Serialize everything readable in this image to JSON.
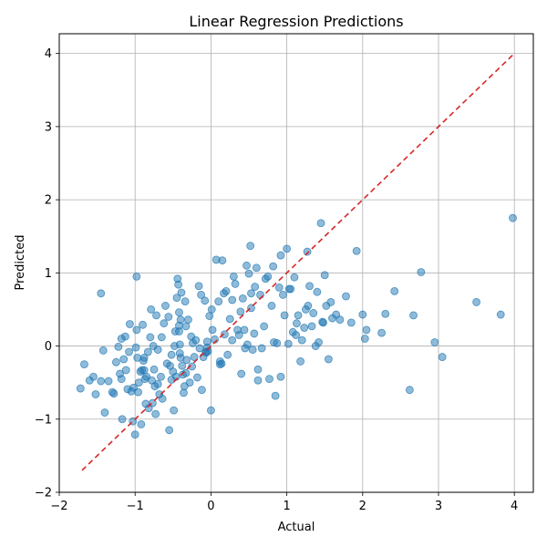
{
  "chart_data": {
    "type": "scatter",
    "title": "Linear Regression Predictions",
    "xlabel": "Actual",
    "ylabel": "Predicted",
    "xlim": [
      -2,
      4.25
    ],
    "ylim": [
      -2,
      4.27
    ],
    "xticks": [
      -2,
      -1,
      0,
      1,
      2,
      3,
      4
    ],
    "yticks": [
      -2,
      -1,
      0,
      1,
      2,
      3,
      4
    ],
    "grid": true,
    "colors": {
      "points": "#1f77b4",
      "reference_line": "#d62728"
    },
    "reference_line": {
      "x": [
        -1.7,
        4.0
      ],
      "y": [
        -1.7,
        4.0
      ],
      "style": "dashed"
    },
    "series": [
      {
        "x": [
          -1.72,
          -1.67,
          -1.6,
          -1.55,
          -1.52,
          -1.45,
          -1.42,
          -1.4,
          -1.35,
          -1.3,
          -1.28,
          -1.25,
          -1.22,
          -1.2,
          -1.18,
          -1.17,
          -1.15,
          -1.13,
          -1.12,
          -1.1,
          -1.08,
          -1.07,
          -1.05,
          -1.03,
          -1.02,
          -1.0,
          -0.99,
          -0.98,
          -0.97,
          -0.96,
          -0.95,
          -0.93,
          -0.92,
          -0.91,
          -0.9,
          -0.89,
          -0.88,
          -0.87,
          -0.86,
          -0.85,
          -0.83,
          -0.82,
          -0.8,
          -0.79,
          -0.78,
          -0.77,
          -0.76,
          -0.75,
          -0.74,
          -0.73,
          -0.72,
          -0.7,
          -0.68,
          -0.66,
          -0.65,
          -0.64,
          -0.62,
          -0.6,
          -0.58,
          -0.56,
          -0.55,
          -0.54,
          -0.52,
          -0.5,
          -0.49,
          -0.48,
          -0.47,
          -0.46,
          -0.45,
          -0.44,
          -0.43,
          -0.42,
          -0.42,
          -0.41,
          -0.41,
          -0.4,
          -0.4,
          -0.39,
          -0.38,
          -0.37,
          -0.36,
          -0.35,
          -0.34,
          -0.33,
          -0.32,
          -0.3,
          -0.28,
          -0.26,
          -0.25,
          -0.24,
          -0.22,
          -0.2,
          -0.18,
          -0.16,
          -0.15,
          -0.13,
          -0.12,
          -0.1,
          -0.08,
          -0.07,
          -0.06,
          -0.05,
          -0.04,
          -0.02,
          0.0,
          0.01,
          0.02,
          0.05,
          0.07,
          0.1,
          0.12,
          0.14,
          0.15,
          0.17,
          0.18,
          0.2,
          0.22,
          0.25,
          0.28,
          0.3,
          0.32,
          0.35,
          0.37,
          0.39,
          0.4,
          0.42,
          0.45,
          0.47,
          0.48,
          0.5,
          0.52,
          0.53,
          0.55,
          0.57,
          0.58,
          0.6,
          0.62,
          0.65,
          0.67,
          0.7,
          0.72,
          0.75,
          0.77,
          0.8,
          0.82,
          0.85,
          0.87,
          0.9,
          0.92,
          0.95,
          0.97,
          1.0,
          1.02,
          1.05,
          1.08,
          1.1,
          1.12,
          1.15,
          1.18,
          1.2,
          1.23,
          1.25,
          1.28,
          1.3,
          1.33,
          1.35,
          1.38,
          1.4,
          1.42,
          1.45,
          1.48,
          1.5,
          1.52,
          1.55,
          1.58,
          1.6,
          1.65,
          1.7,
          1.78,
          1.85,
          1.92,
          2.0,
          2.03,
          2.05,
          2.25,
          2.3,
          2.42,
          2.62,
          2.67,
          2.77,
          2.95,
          3.05,
          3.5,
          3.82,
          3.98,
          -1.45,
          -0.98,
          -0.42,
          0.12,
          0.53,
          1.03,
          1.47,
          -0.52,
          -0.05,
          0.83,
          -1.18,
          -0.88,
          0.28,
          0.62,
          -0.33,
          0.92,
          1.13,
          -0.7,
          0.44,
          1.27
        ],
        "y": [
          -0.58,
          -0.25,
          -0.47,
          -0.42,
          -0.66,
          -0.48,
          -0.06,
          -0.91,
          -0.48,
          -0.63,
          -0.65,
          -0.22,
          -0.01,
          -0.38,
          -0.45,
          -1.0,
          -0.18,
          0.13,
          -0.33,
          -0.59,
          -0.08,
          0.3,
          -0.62,
          -1.03,
          -0.57,
          -1.21,
          -0.02,
          0.95,
          -0.16,
          -0.63,
          -0.5,
          -0.35,
          -1.07,
          -0.33,
          0.29,
          -0.2,
          -0.16,
          -0.45,
          -0.79,
          -0.42,
          -0.08,
          -0.85,
          0.12,
          0.5,
          -0.47,
          -0.78,
          0.0,
          -0.32,
          -0.55,
          -0.93,
          0.42,
          -0.05,
          -0.66,
          -0.42,
          0.12,
          -0.72,
          0.31,
          0.55,
          -0.24,
          0.4,
          -1.15,
          -0.27,
          -0.12,
          -0.35,
          -0.88,
          0.0,
          0.2,
          -0.42,
          0.66,
          0.92,
          0.84,
          0.28,
          0.46,
          -0.1,
          0.02,
          -0.16,
          0.36,
          0.73,
          -0.27,
          -0.39,
          -0.64,
          -0.55,
          0.61,
          0.27,
          -0.19,
          0.36,
          -0.5,
          0.13,
          -0.28,
          0.04,
          -0.15,
          0.08,
          -0.43,
          0.82,
          -0.03,
          0.7,
          -0.6,
          -0.15,
          0.62,
          -0.08,
          -0.09,
          0.06,
          -0.07,
          0.41,
          -0.88,
          0.5,
          0.22,
          0.09,
          1.18,
          0.61,
          -0.21,
          -0.24,
          1.17,
          0.72,
          0.16,
          0.75,
          -0.12,
          0.37,
          0.08,
          0.95,
          0.85,
          0.22,
          0.15,
          0.47,
          -0.38,
          0.65,
          -0.03,
          1.1,
          0.02,
          0.99,
          1.37,
          0.52,
          -0.05,
          0.17,
          0.81,
          1.07,
          -0.32,
          0.7,
          -0.03,
          0.27,
          0.92,
          0.95,
          -0.45,
          0.55,
          1.09,
          -0.68,
          0.04,
          0.8,
          -0.42,
          0.7,
          0.42,
          1.33,
          0.03,
          0.78,
          0.19,
          0.94,
          0.15,
          0.42,
          -0.21,
          0.08,
          0.25,
          0.5,
          0.55,
          0.82,
          0.27,
          0.45,
          0.0,
          0.74,
          0.05,
          1.68,
          0.32,
          0.97,
          0.55,
          -0.18,
          0.6,
          0.38,
          0.43,
          0.36,
          0.68,
          0.32,
          1.3,
          0.43,
          0.1,
          0.22,
          0.18,
          0.44,
          0.75,
          -0.6,
          0.42,
          1.01,
          0.05,
          -0.15,
          0.6,
          0.43,
          1.75,
          0.72,
          0.22,
          0.2,
          -0.25,
          0.72,
          0.78,
          0.33,
          -0.46,
          -0.02,
          0.05,
          0.1,
          -0.33,
          0.63,
          -0.47,
          -0.37,
          1.24,
          0.31,
          -0.52,
          0.22,
          1.29
        ]
      }
    ]
  }
}
